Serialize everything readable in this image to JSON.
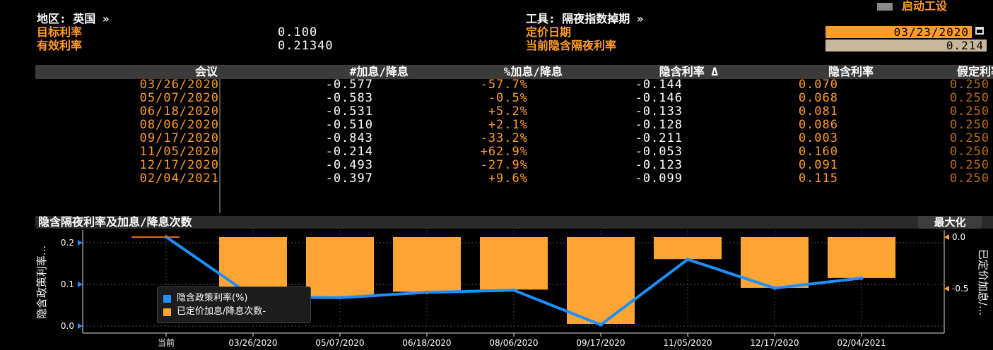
{
  "header": {
    "launch_label": "启动工设",
    "region_label": "地区: 英国 »",
    "target_rate_label": "目标利率",
    "target_rate_value": "0.100",
    "effective_rate_label": "有效利率",
    "effective_rate_value": "0.21340",
    "instrument_label": "工具: 隔夜指数掉期 »",
    "pricing_date_label": "定价日期",
    "pricing_date_value": "03/23/2020",
    "implied_rate_label": "当前隐含隔夜利率",
    "implied_rate_value": "0.214"
  },
  "table": {
    "columns": [
      "会议",
      "#加息/降息",
      "%加息/降息",
      "隐含利率 Δ",
      "隐含利率",
      "假定利率变动"
    ],
    "rows": [
      [
        "03/26/2020",
        "-0.577",
        "-57.7%",
        "-0.144",
        "0.070",
        "0.250"
      ],
      [
        "05/07/2020",
        "-0.583",
        "-0.5%",
        "-0.146",
        "0.068",
        "0.250"
      ],
      [
        "06/18/2020",
        "-0.531",
        "+5.2%",
        "-0.133",
        "0.081",
        "0.250"
      ],
      [
        "08/06/2020",
        "-0.510",
        "+2.1%",
        "-0.128",
        "0.086",
        "0.250"
      ],
      [
        "09/17/2020",
        "-0.843",
        "-33.2%",
        "-0.211",
        "0.003",
        "0.250"
      ],
      [
        "11/05/2020",
        "-0.214",
        "+62.9%",
        "-0.053",
        "0.160",
        "0.250"
      ],
      [
        "12/17/2020",
        "-0.493",
        "-27.9%",
        "-0.123",
        "0.091",
        "0.250"
      ],
      [
        "02/04/2021",
        "-0.397",
        "+9.6%",
        "-0.099",
        "0.115",
        "0.250"
      ]
    ]
  },
  "chart": {
    "maximize_label": "最大化"
  },
  "colors": {
    "orange": "#ff9d2a",
    "bar": "#ffa533",
    "line": "#1e8fff",
    "header_bg": "#3b3b3b"
  },
  "chart_data": {
    "type": "bar",
    "title": "隐含隔夜利率及加息/降息次数",
    "categories": [
      "当前",
      "03/26/2020",
      "05/07/2020",
      "06/18/2020",
      "08/06/2020",
      "09/17/2020",
      "11/05/2020",
      "12/17/2020",
      "02/04/2021"
    ],
    "series": [
      {
        "name": "隐含政策利率(%)",
        "type": "line",
        "axis": "left",
        "values": [
          0.214,
          0.07,
          0.068,
          0.081,
          0.086,
          0.003,
          0.16,
          0.091,
          0.115
        ]
      },
      {
        "name": "已定价加息/降息次数-",
        "type": "bar",
        "axis": "right",
        "values": [
          null,
          -0.577,
          -0.583,
          -0.531,
          -0.51,
          -0.843,
          -0.214,
          -0.493,
          -0.397
        ]
      }
    ],
    "ylabel": "隐含政策利率...",
    "y2label": "已定价加息/...",
    "ylim": [
      0,
      0.2
    ],
    "y2lim": [
      -0.85,
      0.0
    ],
    "yticks": [
      "0.2",
      "0.1",
      "0.0"
    ],
    "y2ticks": [
      "0.0",
      "-0.5"
    ],
    "legend": "bottom-left",
    "grid": true
  }
}
